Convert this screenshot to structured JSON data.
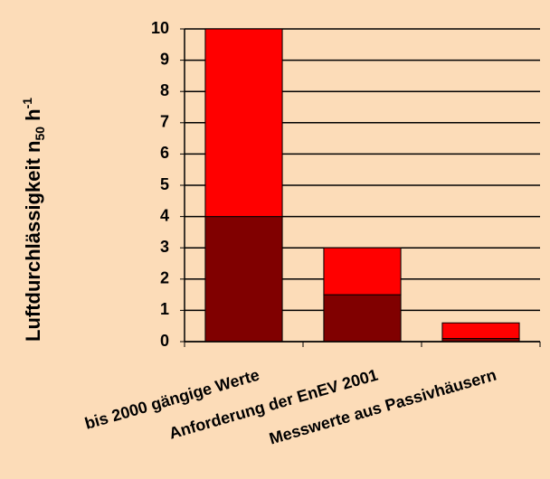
{
  "chart_data": {
    "type": "stacked-bar",
    "ylabel": "Luftdurchlässigkeit n",
    "ylabel_sub": "50",
    "ylabel_unit": "h",
    "ylabel_sup": "-1",
    "categories": [
      "bis 2000 gängige Werte",
      "Anforderung der EnEV 2001",
      "Messwerte aus Passivhäusern"
    ],
    "series": [
      {
        "color": "#800000",
        "values": [
          4,
          1.5,
          0.1
        ]
      },
      {
        "color": "#ff0000",
        "values": [
          6,
          1.5,
          0.5
        ]
      }
    ],
    "ylim": [
      0,
      10
    ],
    "yticks": [
      0,
      1,
      2,
      3,
      4,
      5,
      6,
      7,
      8,
      9,
      10
    ],
    "grid": true
  }
}
